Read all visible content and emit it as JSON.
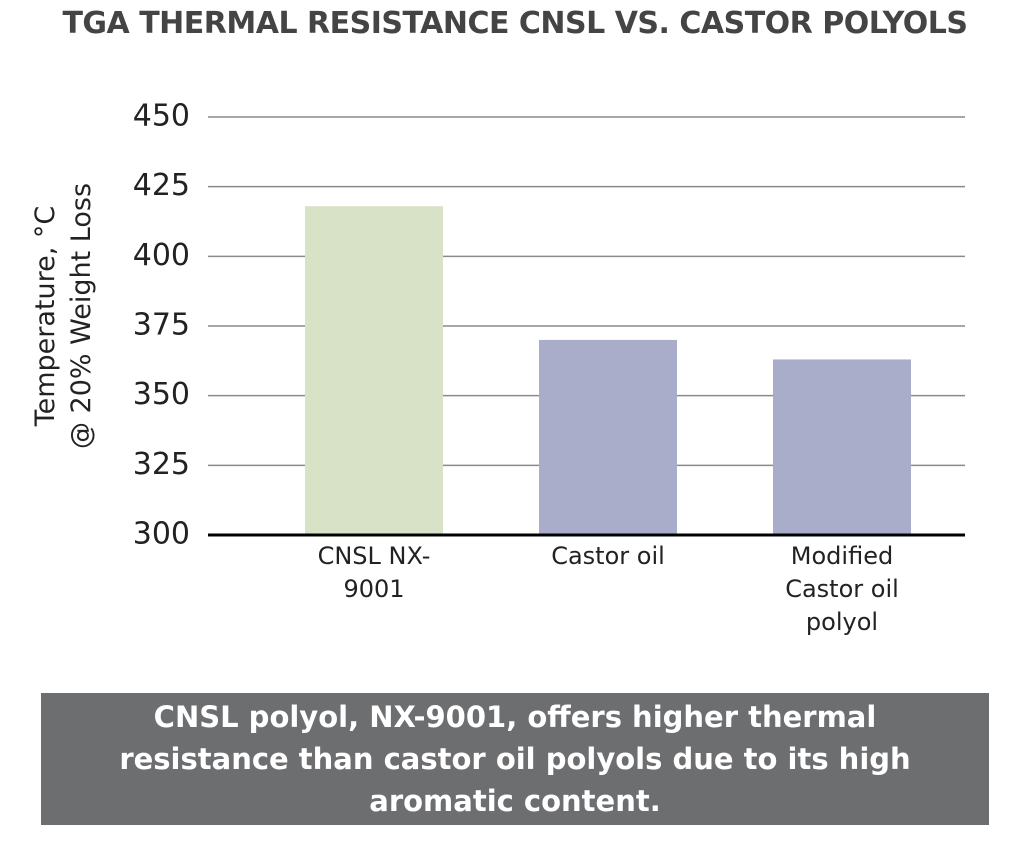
{
  "chart_data": {
    "type": "bar",
    "title": "TGA THERMAL RESISTANCE CNSL VS. CASTOR POLYOLS",
    "ylabel": [
      "Temperature, °C",
      "@ 20% Weight Loss"
    ],
    "categories": [
      "CNSL NX-9001",
      "Castor oil",
      "Modified Castor oil polyol"
    ],
    "values": [
      418,
      370,
      363
    ],
    "colors": [
      "#d8e2c6",
      "#a9adc9",
      "#a9adc9"
    ],
    "ylim": [
      300,
      450
    ],
    "yticks": [
      300,
      325,
      350,
      375,
      400,
      425,
      450
    ],
    "grid": true,
    "annotation": "CNSL polyol, NX-9001, offers higher thermal resistance than castor oil polyols due to its high aromatic content."
  }
}
